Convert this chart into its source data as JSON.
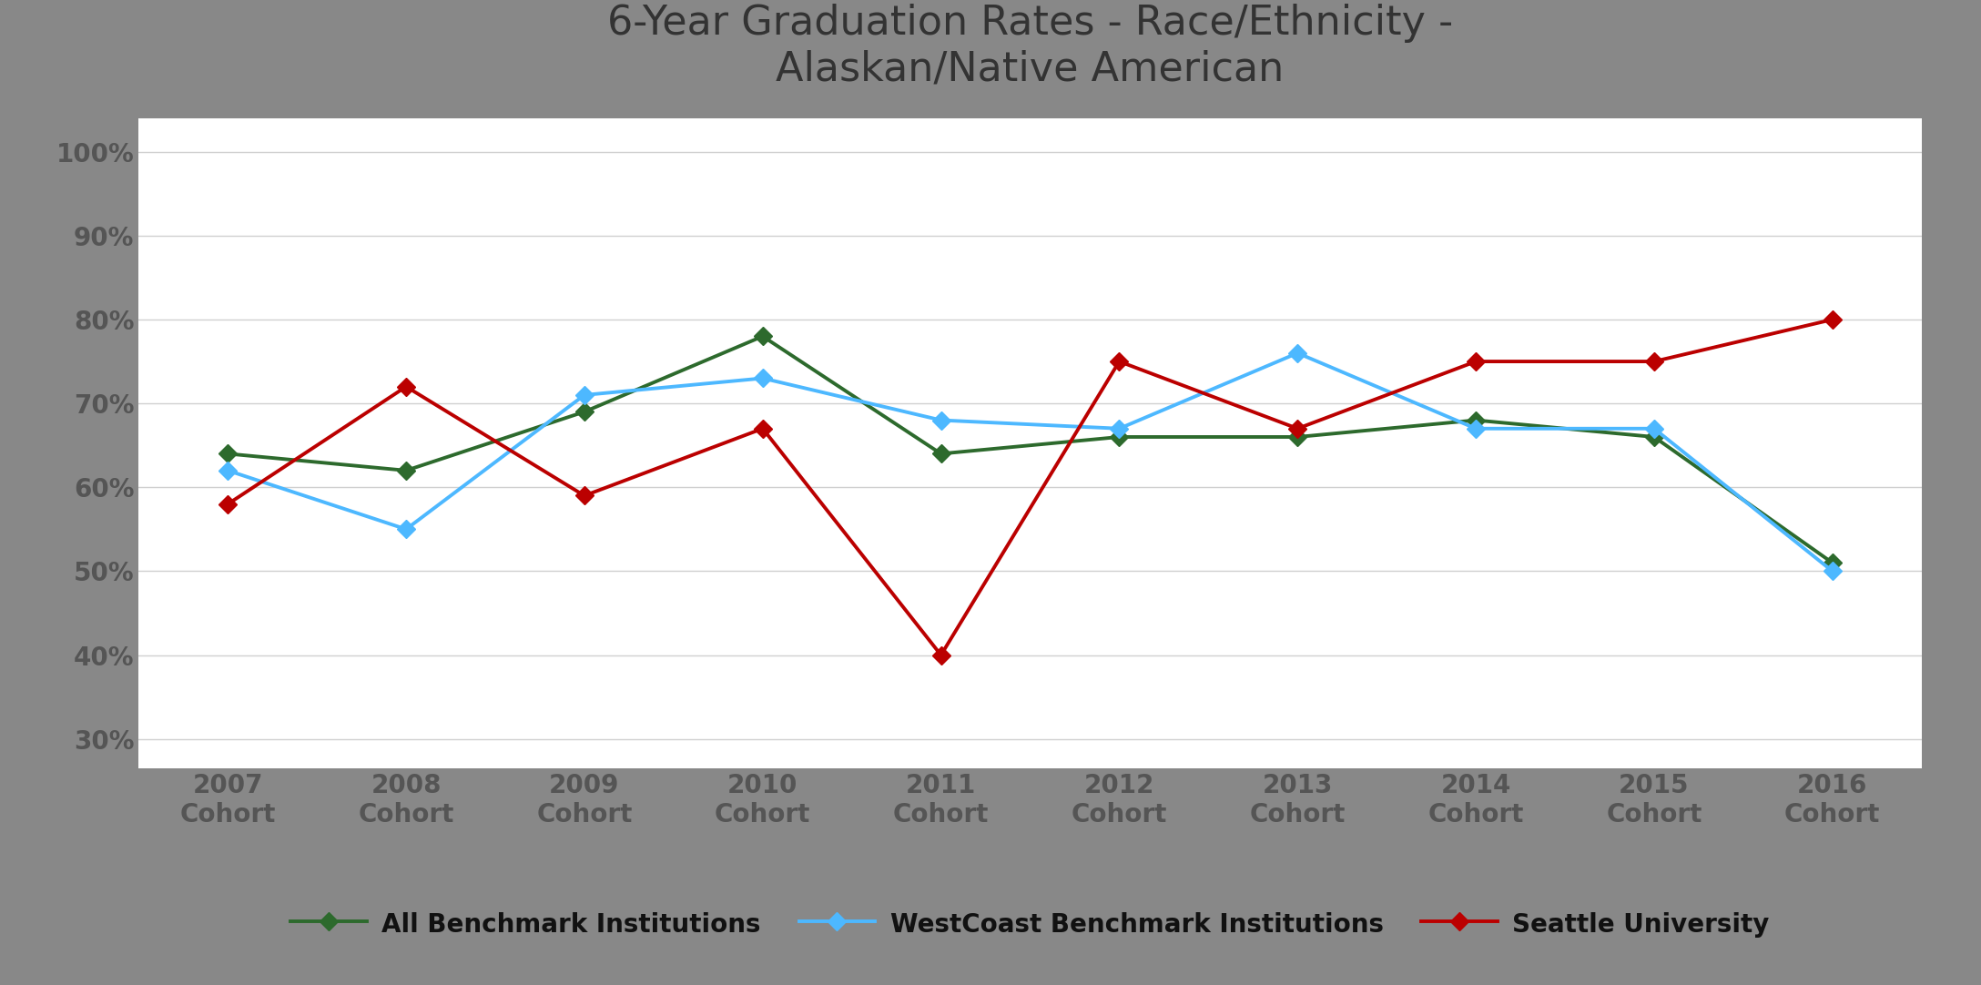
{
  "title": "6-Year Graduation Rates - Race/Ethnicity -\nAlaskan/Native American",
  "x_labels": [
    "2007\nCohort",
    "2008\nCohort",
    "2009\nCohort",
    "2010\nCohort",
    "2011\nCohort",
    "2012\nCohort",
    "2013\nCohort",
    "2014\nCohort",
    "2015\nCohort",
    "2016\nCohort"
  ],
  "x_values": [
    0,
    1,
    2,
    3,
    4,
    5,
    6,
    7,
    8,
    9
  ],
  "all_benchmark": [
    0.64,
    0.62,
    0.69,
    0.78,
    0.64,
    0.66,
    0.66,
    0.68,
    0.66,
    0.51
  ],
  "westcoast_benchmark": [
    0.62,
    0.55,
    0.71,
    0.73,
    0.68,
    0.67,
    0.76,
    0.67,
    0.67,
    0.5
  ],
  "seattle_university": [
    0.58,
    0.72,
    0.59,
    0.67,
    0.4,
    0.75,
    0.67,
    0.75,
    0.75,
    0.8
  ],
  "all_benchmark_color": "#2d6a2d",
  "westcoast_benchmark_color": "#4db8ff",
  "seattle_university_color": "#bb0000",
  "figure_bg_color": "#888888",
  "plot_bg_color": "#ffffff",
  "grid_color": "#d0d0d0",
  "title_color": "#333333",
  "tick_color": "#555555",
  "ylim_min": 0.265,
  "ylim_max": 1.04,
  "yticks": [
    0.3,
    0.4,
    0.5,
    0.6,
    0.7,
    0.8,
    0.9,
    1.0
  ],
  "ytick_labels": [
    "30%",
    "40%",
    "50%",
    "60%",
    "70%",
    "80%",
    "90%",
    "100%"
  ],
  "title_fontsize": 32,
  "tick_fontsize": 20,
  "legend_fontsize": 20,
  "line_width": 2.8,
  "marker_size": 10,
  "legend_labels": [
    "All Benchmark Institutions",
    "WestCoast Benchmark Institutions",
    "Seattle University"
  ]
}
